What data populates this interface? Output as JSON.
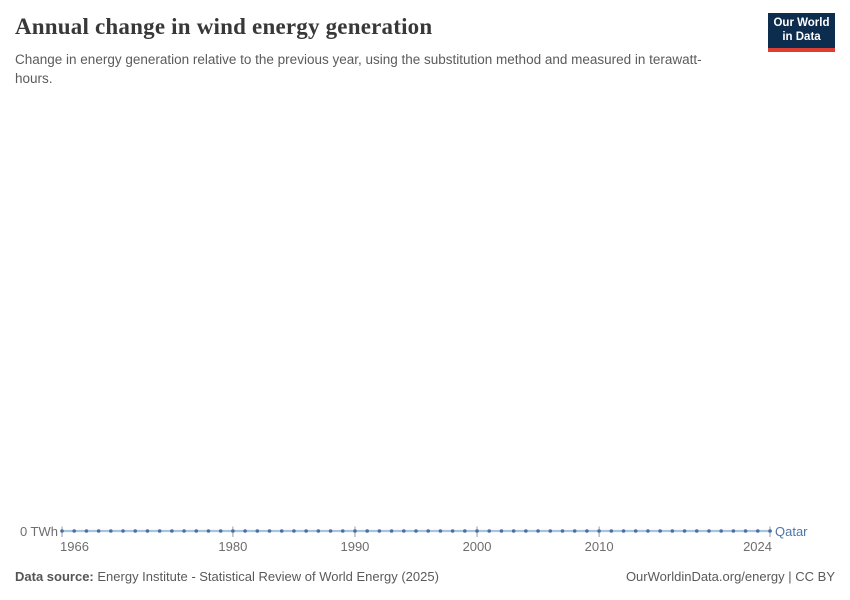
{
  "header": {
    "title": "Annual change in wind energy generation",
    "subtitle": "Change in energy generation relative to the previous year, using the substitution method and measured in terawatt-hours.",
    "logo": {
      "line1": "Our World",
      "line2": "in Data",
      "bg_color": "#0c2d4e",
      "accent_color": "#dc3e32"
    }
  },
  "chart_data": {
    "type": "line",
    "title": "Annual change in wind energy generation",
    "unit": "TWh",
    "xlabel": "",
    "ylabel": "",
    "y_axis_label": "0 TWh",
    "grid": false,
    "legend": "end-of-line entity label",
    "ylim": [
      0,
      0
    ],
    "x_ticks": [
      1966,
      1980,
      1990,
      2000,
      2010,
      2024
    ],
    "x": [
      1966,
      1967,
      1968,
      1969,
      1970,
      1971,
      1972,
      1973,
      1974,
      1975,
      1976,
      1977,
      1978,
      1979,
      1980,
      1981,
      1982,
      1983,
      1984,
      1985,
      1986,
      1987,
      1988,
      1989,
      1990,
      1991,
      1992,
      1993,
      1994,
      1995,
      1996,
      1997,
      1998,
      1999,
      2000,
      2001,
      2002,
      2003,
      2004,
      2005,
      2006,
      2007,
      2008,
      2009,
      2010,
      2011,
      2012,
      2013,
      2014,
      2015,
      2016,
      2017,
      2018,
      2019,
      2020,
      2021,
      2022,
      2023,
      2024
    ],
    "series": [
      {
        "name": "Qatar",
        "color": "#4a6fa5",
        "values": [
          0,
          0,
          0,
          0,
          0,
          0,
          0,
          0,
          0,
          0,
          0,
          0,
          0,
          0,
          0,
          0,
          0,
          0,
          0,
          0,
          0,
          0,
          0,
          0,
          0,
          0,
          0,
          0,
          0,
          0,
          0,
          0,
          0,
          0,
          0,
          0,
          0,
          0,
          0,
          0,
          0,
          0,
          0,
          0,
          0,
          0,
          0,
          0,
          0,
          0,
          0,
          0,
          0,
          0,
          0,
          0,
          0,
          0,
          0
        ]
      }
    ],
    "line_color": "#a9c2e0",
    "marker_color": "#4a6fa5",
    "tick_color": "#9a9a9a",
    "entity_label_color": "#4e74ab"
  },
  "footer": {
    "source_label": "Data source:",
    "source_text": "Energy Institute - Statistical Review of World Energy (2025)",
    "link_text": "OurWorldinData.org/energy | CC BY"
  }
}
